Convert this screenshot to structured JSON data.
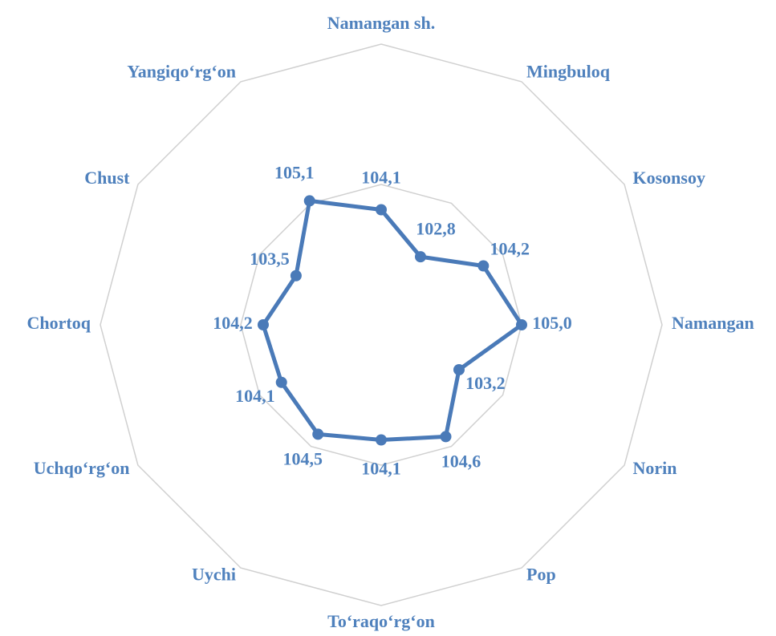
{
  "chart_data": {
    "type": "radar",
    "categories": [
      "Namangan sh.",
      "Mingbuloq",
      "Kosonsoy",
      "Namangan",
      "Norin",
      "Pop",
      "To‘raqo‘rg‘on",
      "Uychi",
      "Uchqo‘rg‘on",
      "Chortoq",
      "Chust",
      "Yangiqo‘rg‘on"
    ],
    "series": [
      {
        "color": "#4a7ab8",
        "values": [
          104.1,
          102.8,
          104.2,
          105.0,
          103.2,
          104.6,
          104.1,
          104.5,
          104.1,
          104.2,
          103.5,
          105.1
        ],
        "value_labels": [
          "104,1",
          "102,8",
          "104,2",
          "105,0",
          "103,2",
          "104,6",
          "104,1",
          "104,5",
          "104,1",
          "104,2",
          "103,5",
          "105,1"
        ]
      }
    ],
    "ylim": [
      100,
      110
    ],
    "yticks": [
      100,
      105,
      110
    ],
    "grid": true
  }
}
